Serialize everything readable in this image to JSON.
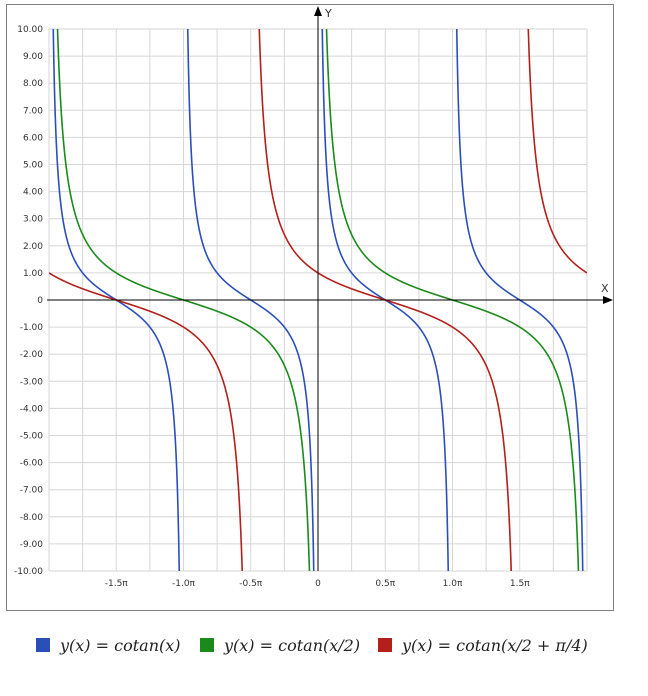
{
  "chart_data": {
    "type": "line",
    "xlabel": "X",
    "ylabel": "Y",
    "xlim": [
      -6.2832,
      6.2832
    ],
    "ylim": [
      -10,
      10
    ],
    "x_ticks": [
      {
        "value": -4.7124,
        "label": "-1.5π"
      },
      {
        "value": -3.1416,
        "label": "-1.0π"
      },
      {
        "value": -1.5708,
        "label": "-0.5π"
      },
      {
        "value": 0,
        "label": "0"
      },
      {
        "value": 1.5708,
        "label": "0.5π"
      },
      {
        "value": 3.1416,
        "label": "1.0π"
      },
      {
        "value": 4.7124,
        "label": "1.5π"
      }
    ],
    "y_ticks": [
      {
        "value": 10,
        "label": "10.00"
      },
      {
        "value": 9,
        "label": "9.00"
      },
      {
        "value": 8,
        "label": "8.00"
      },
      {
        "value": 7,
        "label": "7.00"
      },
      {
        "value": 6,
        "label": "6.00"
      },
      {
        "value": 5,
        "label": "5.00"
      },
      {
        "value": 4,
        "label": "4.00"
      },
      {
        "value": 3,
        "label": "3.00"
      },
      {
        "value": 2,
        "label": "2.00"
      },
      {
        "value": 1,
        "label": "1.00"
      },
      {
        "value": 0,
        "label": "0"
      },
      {
        "value": -1,
        "label": "-1.00"
      },
      {
        "value": -2,
        "label": "-2.00"
      },
      {
        "value": -3,
        "label": "-3.00"
      },
      {
        "value": -4,
        "label": "-4.00"
      },
      {
        "value": -5,
        "label": "-5.00"
      },
      {
        "value": -6,
        "label": "-6.00"
      },
      {
        "value": -7,
        "label": "-7.00"
      },
      {
        "value": -8,
        "label": "-8.00"
      },
      {
        "value": -9,
        "label": "-9.00"
      },
      {
        "value": -10,
        "label": "-10.00"
      }
    ],
    "grid": true,
    "legend_position": "bottom",
    "series": [
      {
        "name": "y(x) = cotan(x)",
        "color": "#2a4fb8",
        "formula": "cot(x)"
      },
      {
        "name": "y(x) = cotan(x/2)",
        "color": "#1a8a1a",
        "formula": "cot(x/2)"
      },
      {
        "name": "y(x) = cotan(x/2 + π/4)",
        "color": "#b3201a",
        "formula": "cot(x/2+pi/4)"
      }
    ]
  }
}
